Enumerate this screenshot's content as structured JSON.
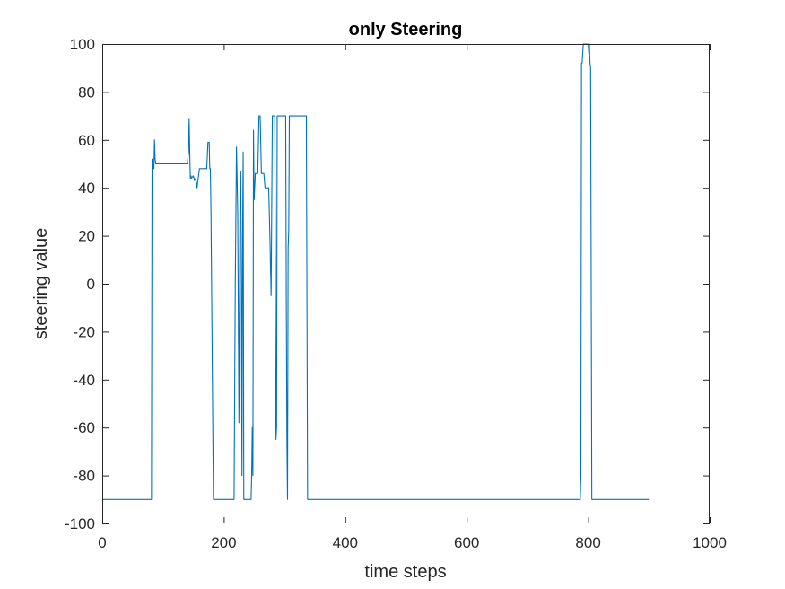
{
  "chart_data": {
    "type": "line",
    "title": "only Steering",
    "xlabel": "time steps",
    "ylabel": "steering value",
    "xlim": [
      0,
      1000
    ],
    "ylim": [
      -100,
      100
    ],
    "xticks": [
      0,
      200,
      400,
      600,
      800,
      1000
    ],
    "yticks": [
      -100,
      -80,
      -60,
      -40,
      -20,
      0,
      20,
      40,
      60,
      80,
      100
    ],
    "grid": false,
    "series_color": "#0072BD",
    "series": [
      {
        "x": [
          0,
          81,
          82,
          83,
          84,
          85,
          86,
          87,
          88,
          90,
          95,
          100,
          110,
          120,
          130,
          140,
          142,
          143,
          144,
          145,
          146,
          147,
          150,
          152,
          154,
          156,
          158,
          160,
          162,
          165,
          168,
          170,
          172,
          174,
          175,
          176,
          177,
          178,
          179,
          183,
          190,
          200,
          210,
          217,
          219,
          221,
          223,
          225,
          227,
          228,
          229,
          230,
          231,
          232,
          233,
          234,
          235,
          236,
          238,
          240,
          243,
          245,
          246,
          247,
          248,
          249,
          250,
          252,
          254,
          256,
          258,
          260,
          262,
          264,
          266,
          268,
          270,
          272,
          274,
          276,
          278,
          280,
          282,
          283,
          284,
          285,
          286,
          287,
          288,
          290,
          292,
          294,
          296,
          298,
          300,
          302,
          303,
          304,
          305,
          306,
          307,
          308,
          309,
          310,
          312,
          314,
          316,
          318,
          320,
          325,
          330,
          335,
          336,
          338,
          340,
          350,
          400,
          500,
          600,
          700,
          780,
          785,
          787,
          788,
          789,
          790,
          792,
          794,
          796,
          798,
          800,
          801,
          802,
          803,
          804,
          806,
          810,
          850,
          900
        ],
        "y": [
          -90,
          -90,
          52,
          50,
          49,
          48,
          60,
          52,
          50,
          50,
          50,
          50,
          50,
          50,
          50,
          50,
          55,
          69,
          55,
          44,
          45,
          44,
          45,
          43,
          44,
          40,
          44,
          48,
          48,
          48,
          48,
          48,
          48,
          59,
          59,
          59,
          48,
          48,
          30,
          -90,
          -90,
          -90,
          -90,
          -90,
          0,
          57,
          30,
          -58,
          47,
          47,
          0,
          -80,
          20,
          55,
          -90,
          -90,
          -90,
          -90,
          -90,
          -90,
          -90,
          -90,
          -80,
          -60,
          -80,
          64,
          35,
          46,
          46,
          46,
          70,
          70,
          46,
          46,
          46,
          40,
          40,
          40,
          40,
          20,
          -5,
          70,
          70,
          70,
          70,
          0,
          -65,
          -60,
          70,
          70,
          70,
          70,
          70,
          70,
          70,
          70,
          -8,
          -65,
          -90,
          15,
          22,
          70,
          70,
          70,
          70,
          70,
          70,
          70,
          70,
          70,
          70,
          70,
          70,
          -90,
          -90,
          -90,
          -90,
          -90,
          -90,
          -90,
          -90,
          -90,
          -90,
          -80,
          92,
          92,
          100,
          100,
          100,
          100,
          100,
          96,
          100,
          92,
          90,
          -90,
          -90,
          -90,
          -90
        ]
      }
    ]
  }
}
